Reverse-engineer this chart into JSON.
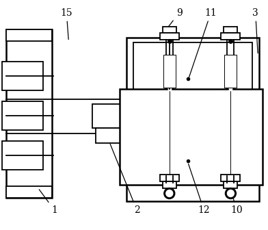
{
  "figsize": [
    3.92,
    3.36
  ],
  "dpi": 100,
  "bg_color": "#ffffff",
  "line_color": "#000000",
  "lw": 1.3,
  "lw_thin": 0.7,
  "lw_thick": 1.8
}
